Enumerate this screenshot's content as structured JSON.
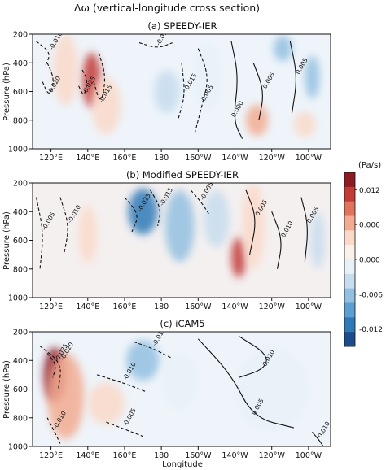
{
  "figure": {
    "title": "Δω (vertical-longitude cross section)",
    "xlabel": "Longitude",
    "ylabel": "Pressure (hPa)"
  },
  "colorbar": {
    "label": "(Pa/s)",
    "min": -0.015,
    "max": 0.015,
    "ticks": [
      0.012,
      0.006,
      0.0,
      -0.006,
      -0.012
    ],
    "tick_labels": [
      "0.012",
      "0.006",
      "0.000",
      "-0.006",
      "-0.012"
    ],
    "colors": [
      "#8c1b24",
      "#c23b36",
      "#e0735c",
      "#f2ab91",
      "#fad9c9",
      "#fbf1eb",
      "#e9f1f8",
      "#c7dcee",
      "#93bfe0",
      "#5d9fd0",
      "#2f79b7",
      "#1c4c8c"
    ]
  },
  "chart_data": [
    {
      "type": "heatmap",
      "title": "(a) SPEEDY-IER",
      "x_ticks": [
        "120°E",
        "140°E",
        "160°E",
        "180",
        "160°W",
        "140°W",
        "120°W",
        "100°W"
      ],
      "x_tick_values": [
        120,
        140,
        160,
        180,
        200,
        220,
        240,
        260
      ],
      "xlim": [
        110,
        272
      ],
      "y_ticks": [
        "200",
        "400",
        "600",
        "800",
        "1000"
      ],
      "y_tick_values": [
        200,
        400,
        600,
        800,
        1000
      ],
      "ylim": [
        1000,
        200
      ],
      "shading": [
        {
          "lon": 142,
          "p": 520,
          "value": 0.012,
          "width": 10,
          "height": 380
        },
        {
          "lon": 128,
          "p": 450,
          "value": 0.004,
          "width": 14,
          "height": 500
        },
        {
          "lon": 150,
          "p": 700,
          "value": 0.003,
          "width": 16,
          "height": 400
        },
        {
          "lon": 183,
          "p": 600,
          "value": -0.003,
          "width": 14,
          "height": 300
        },
        {
          "lon": 205,
          "p": 500,
          "value": -0.002,
          "width": 16,
          "height": 500
        },
        {
          "lon": 246,
          "p": 300,
          "value": -0.006,
          "width": 10,
          "height": 180
        },
        {
          "lon": 262,
          "p": 500,
          "value": -0.005,
          "width": 8,
          "height": 300
        },
        {
          "lon": 232,
          "p": 800,
          "value": 0.006,
          "width": 12,
          "height": 220
        },
        {
          "lon": 258,
          "p": 830,
          "value": 0.003,
          "width": 12,
          "height": 180
        }
      ],
      "contours": [
        {
          "level": -0.025,
          "points": [
            [
              137,
              450
            ],
            [
              140,
              520
            ],
            [
              138,
              640
            ],
            [
              135,
              560
            ]
          ]
        },
        {
          "level": -0.02,
          "points": [
            [
              118,
              400
            ],
            [
              122,
              520
            ],
            [
              119,
              640
            ],
            [
              115,
              520
            ]
          ]
        },
        {
          "level": -0.015,
          "points": [
            [
              146,
              330
            ],
            [
              150,
              500
            ],
            [
              147,
              700
            ],
            [
              143,
              520
            ]
          ]
        },
        {
          "level": -0.01,
          "points": [
            [
              112,
              250
            ],
            [
              120,
              330
            ],
            [
              117,
              420
            ]
          ]
        },
        {
          "level": -0.01,
          "points": [
            [
              168,
              260
            ],
            [
              178,
              300
            ],
            [
              186,
              260
            ]
          ]
        },
        {
          "level": -0.015,
          "points": [
            [
              191,
              400
            ],
            [
              193,
              620
            ],
            [
              189,
              800
            ]
          ]
        },
        {
          "level": -0.005,
          "points": [
            [
              200,
              300
            ],
            [
              206,
              500
            ],
            [
              202,
              700
            ],
            [
              198,
              900
            ]
          ]
        },
        {
          "level": 0.0,
          "points": [
            [
              218,
              250
            ],
            [
              222,
              500
            ],
            [
              219,
              800
            ],
            [
              224,
              930
            ]
          ]
        },
        {
          "level": 0.005,
          "points": [
            [
              230,
              400
            ],
            [
              236,
              600
            ],
            [
              233,
              800
            ]
          ]
        },
        {
          "level": 0.005,
          "points": [
            [
              250,
              250
            ],
            [
              254,
              500
            ],
            [
              251,
              750
            ]
          ]
        }
      ],
      "contour_labels": [
        "-0.010",
        "-0.015",
        "-0.020",
        "-0.025",
        "-0.015",
        "-0.010",
        "-0.015",
        "-0.005",
        "0.000",
        "0.005",
        "0.005"
      ]
    },
    {
      "type": "heatmap",
      "title": "(b) Modified SPEEDY-IER",
      "x_ticks": [
        "120°E",
        "140°E",
        "160°E",
        "180",
        "160°W",
        "140°W",
        "120°W",
        "100°W"
      ],
      "x_tick_values": [
        120,
        140,
        160,
        180,
        200,
        220,
        240,
        260
      ],
      "xlim": [
        110,
        272
      ],
      "y_ticks": [
        "200",
        "400",
        "600",
        "800",
        "1000"
      ],
      "y_tick_values": [
        200,
        400,
        600,
        800,
        1000
      ],
      "ylim": [
        1000,
        200
      ],
      "shading": [
        {
          "lon": 170,
          "p": 400,
          "value": -0.012,
          "width": 16,
          "height": 320
        },
        {
          "lon": 190,
          "p": 500,
          "value": -0.007,
          "width": 16,
          "height": 500
        },
        {
          "lon": 210,
          "p": 450,
          "value": -0.004,
          "width": 14,
          "height": 400
        },
        {
          "lon": 140,
          "p": 560,
          "value": 0.004,
          "width": 10,
          "height": 400
        },
        {
          "lon": 222,
          "p": 720,
          "value": 0.012,
          "width": 8,
          "height": 280
        },
        {
          "lon": 230,
          "p": 500,
          "value": 0.005,
          "width": 12,
          "height": 600
        },
        {
          "lon": 265,
          "p": 600,
          "value": -0.003,
          "width": 8,
          "height": 400
        }
      ],
      "contours": [
        {
          "level": -0.025,
          "points": [
            [
              160,
              300
            ],
            [
              168,
              420
            ],
            [
              164,
              540
            ]
          ]
        },
        {
          "level": -0.015,
          "points": [
            [
              174,
              250
            ],
            [
              180,
              380
            ],
            [
              178,
              500
            ]
          ]
        },
        {
          "level": -0.01,
          "points": [
            [
              125,
              300
            ],
            [
              130,
              500
            ],
            [
              127,
              700
            ]
          ]
        },
        {
          "level": -0.005,
          "points": [
            [
              196,
              250
            ],
            [
              202,
              340
            ],
            [
              206,
              420
            ]
          ]
        },
        {
          "level": -0.005,
          "points": [
            [
              112,
              300
            ],
            [
              116,
              550
            ],
            [
              114,
              800
            ]
          ]
        },
        {
          "level": 0.005,
          "points": [
            [
              226,
              250
            ],
            [
              232,
              450
            ],
            [
              228,
              700
            ]
          ]
        },
        {
          "level": 0.01,
          "points": [
            [
              240,
              400
            ],
            [
              246,
              600
            ],
            [
              243,
              800
            ]
          ]
        },
        {
          "level": 0.005,
          "points": [
            [
              256,
              300
            ],
            [
              260,
              500
            ],
            [
              258,
              750
            ]
          ]
        }
      ],
      "contour_labels": [
        "-0.025",
        "-0.015",
        "-0.010",
        "-0.005",
        "0.005",
        "0.010",
        "0.005",
        "0.005"
      ]
    },
    {
      "type": "heatmap",
      "title": "(c) iCAM5",
      "x_ticks": [
        "120°E",
        "140°E",
        "160°E",
        "180",
        "160°W",
        "140°W",
        "120°W",
        "100°W"
      ],
      "x_tick_values": [
        120,
        140,
        160,
        180,
        200,
        220,
        240,
        260
      ],
      "xlim": [
        110,
        272
      ],
      "y_ticks": [
        "200",
        "400",
        "600",
        "800",
        "1000"
      ],
      "y_tick_values": [
        200,
        400,
        600,
        800,
        1000
      ],
      "ylim": [
        1000,
        200
      ],
      "shading": [
        {
          "lon": 122,
          "p": 500,
          "value": 0.013,
          "width": 12,
          "height": 380
        },
        {
          "lon": 128,
          "p": 650,
          "value": 0.007,
          "width": 20,
          "height": 600
        },
        {
          "lon": 150,
          "p": 700,
          "value": 0.003,
          "width": 20,
          "height": 300
        },
        {
          "lon": 170,
          "p": 400,
          "value": -0.006,
          "width": 18,
          "height": 280
        },
        {
          "lon": 190,
          "p": 550,
          "value": -0.002,
          "width": 20,
          "height": 400
        },
        {
          "lon": 240,
          "p": 600,
          "value": -0.001,
          "width": 40,
          "height": 600
        }
      ],
      "contours": [
        {
          "level": -0.025,
          "points": [
            [
              118,
              350
            ],
            [
              123,
              430
            ],
            [
              121,
              520
            ]
          ]
        },
        {
          "level": -0.02,
          "points": [
            [
              114,
              300
            ],
            [
              126,
              420
            ],
            [
              124,
              600
            ]
          ]
        },
        {
          "level": -0.015,
          "points": [
            [
              165,
              270
            ],
            [
              176,
              320
            ],
            [
              185,
              380
            ]
          ]
        },
        {
          "level": -0.01,
          "points": [
            [
              145,
              500
            ],
            [
              160,
              560
            ],
            [
              172,
              620
            ]
          ]
        },
        {
          "level": -0.005,
          "points": [
            [
              150,
              830
            ],
            [
              160,
              880
            ],
            [
              170,
              930
            ]
          ]
        },
        {
          "level": -0.01,
          "points": [
            [
              118,
              800
            ],
            [
              122,
              900
            ],
            [
              125,
              980
            ]
          ]
        },
        {
          "level": 0.01,
          "points": [
            [
              222,
              230
            ],
            [
              238,
              360
            ],
            [
              236,
              460
            ],
            [
              222,
              520
            ]
          ]
        },
        {
          "level": 0.005,
          "points": [
            [
              200,
              250
            ],
            [
              218,
              500
            ],
            [
              230,
              800
            ],
            [
              252,
              870
            ]
          ]
        },
        {
          "level": 0.01,
          "points": [
            [
              262,
              900
            ],
            [
              266,
              960
            ],
            [
              268,
              1000
            ]
          ]
        }
      ],
      "contour_labels": [
        "-0.025",
        "-0.015",
        "-0.010",
        "0.010",
        "0.005",
        "0.010"
      ]
    }
  ]
}
